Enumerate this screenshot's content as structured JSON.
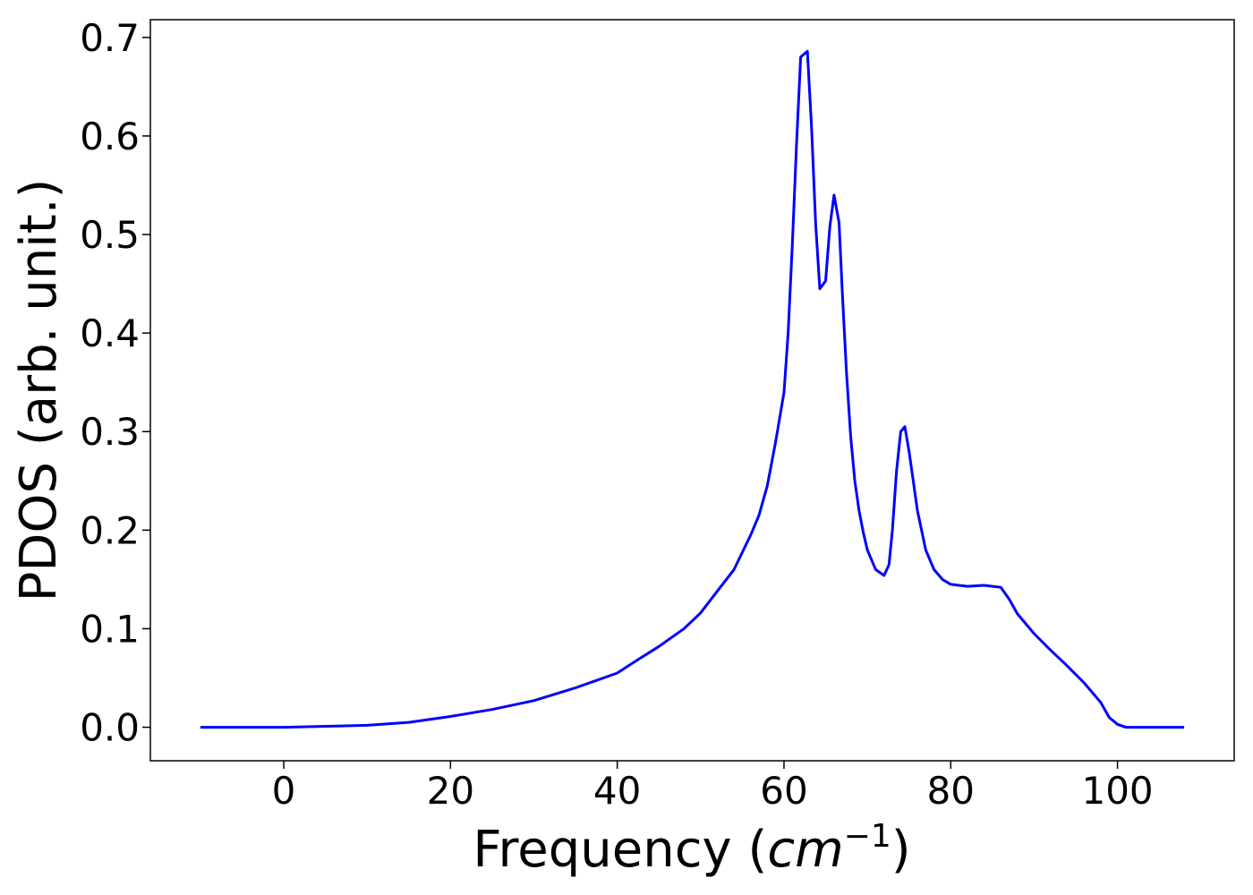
{
  "chart_data": {
    "type": "line",
    "title": "",
    "xlabel_prefix": "Frequency (",
    "xlabel_italic": "cm",
    "xlabel_sup": "−1",
    "xlabel_suffix": ")",
    "ylabel": "PDOS (arb. unit.)",
    "xlim": [
      -16,
      114
    ],
    "ylim": [
      -0.034,
      0.718
    ],
    "xticks": [
      0,
      20,
      40,
      60,
      80,
      100
    ],
    "xtick_labels": [
      "0",
      "20",
      "40",
      "60",
      "80",
      "100"
    ],
    "yticks": [
      0.0,
      0.1,
      0.2,
      0.3,
      0.4,
      0.5,
      0.6,
      0.7
    ],
    "ytick_labels": [
      "0.0",
      "0.1",
      "0.2",
      "0.3",
      "0.4",
      "0.5",
      "0.6",
      "0.7"
    ],
    "grid": false,
    "legend": "none",
    "series": [
      {
        "color": "#0000ff",
        "x": [
          -10,
          0,
          5,
          10,
          15,
          20,
          25,
          30,
          35,
          40,
          42,
          45,
          48,
          50,
          52,
          54,
          56,
          57,
          58,
          59,
          60,
          60.5,
          61,
          61.5,
          62,
          62.8,
          63.3,
          63.8,
          64.3,
          65,
          65.5,
          66,
          66.6,
          67,
          67.5,
          68,
          68.5,
          69,
          69.5,
          70,
          71,
          72,
          72.6,
          73,
          73.5,
          74,
          74.5,
          75,
          75.5,
          76,
          76.5,
          77,
          78,
          79,
          80,
          82,
          84,
          86,
          87,
          88,
          90,
          92,
          94,
          96,
          98,
          99,
          100,
          101,
          108
        ],
        "y": [
          0,
          0,
          0.001,
          0.002,
          0.005,
          0.011,
          0.018,
          0.027,
          0.04,
          0.055,
          0.066,
          0.082,
          0.1,
          0.116,
          0.138,
          0.16,
          0.195,
          0.215,
          0.245,
          0.29,
          0.34,
          0.4,
          0.49,
          0.59,
          0.68,
          0.686,
          0.61,
          0.51,
          0.445,
          0.453,
          0.508,
          0.54,
          0.512,
          0.44,
          0.36,
          0.295,
          0.25,
          0.22,
          0.198,
          0.18,
          0.16,
          0.154,
          0.165,
          0.2,
          0.26,
          0.3,
          0.305,
          0.28,
          0.25,
          0.22,
          0.2,
          0.18,
          0.16,
          0.15,
          0.145,
          0.143,
          0.144,
          0.142,
          0.13,
          0.115,
          0.095,
          0.078,
          0.062,
          0.045,
          0.025,
          0.01,
          0.003,
          0,
          0
        ]
      }
    ]
  }
}
